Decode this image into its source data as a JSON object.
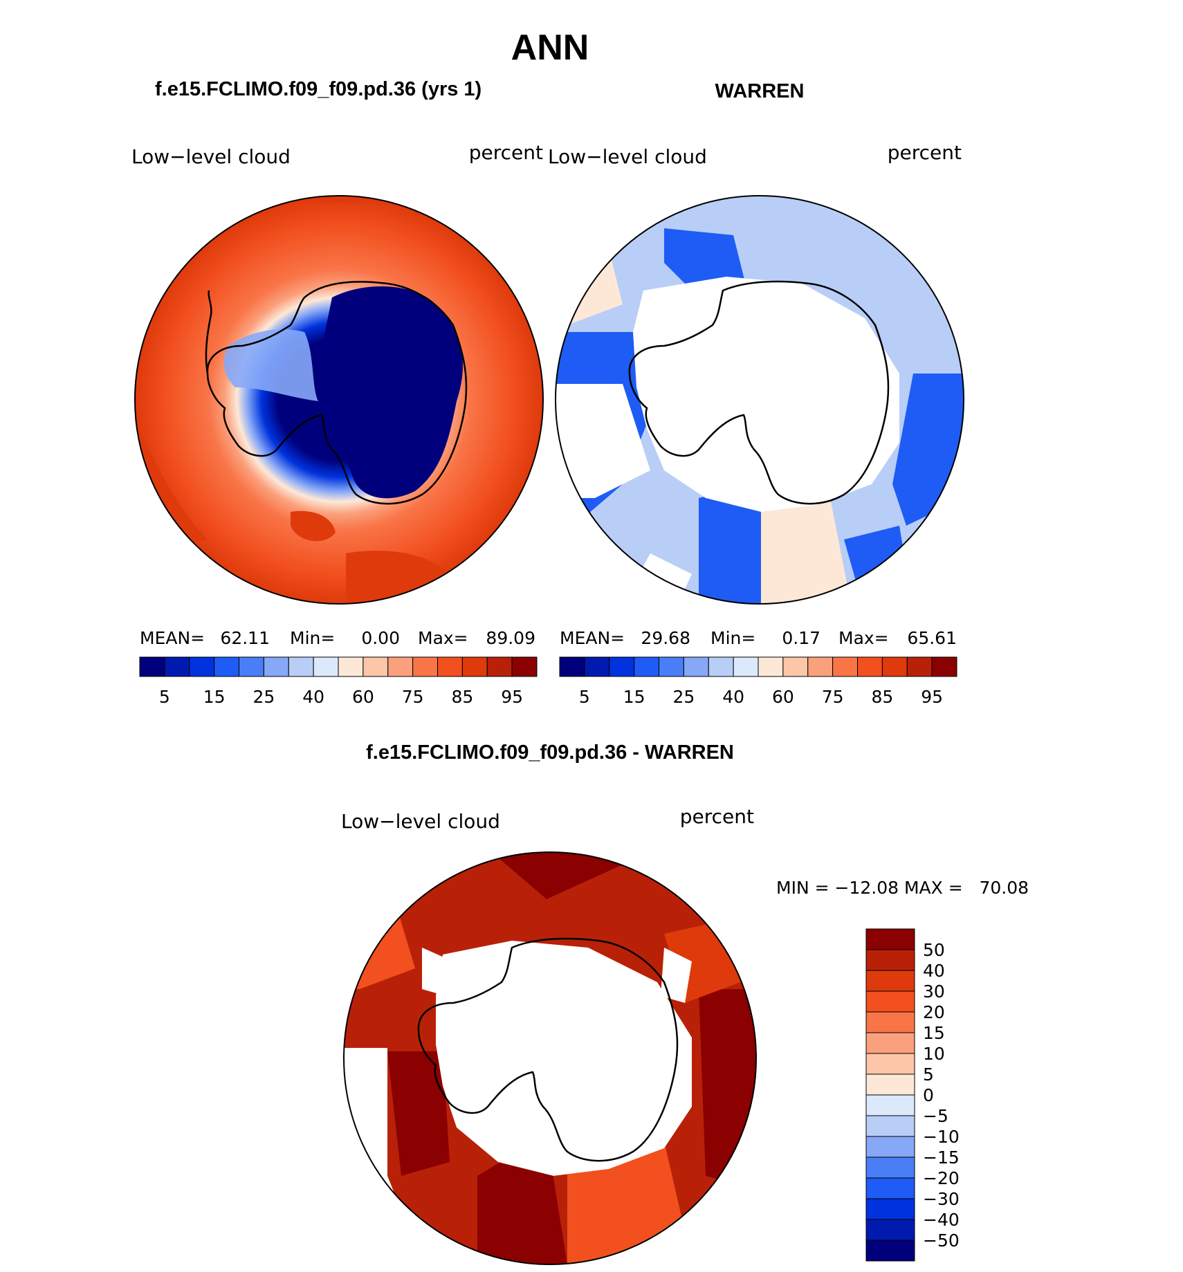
{
  "figure": {
    "title": "ANN",
    "left_title": "f.e15.FCLIMO.f09_f09.pd.36 (yrs 1)",
    "right_title": "WARREN",
    "diff_title": "f.e15.FCLIMO.f09_f09.pd.36 - WARREN"
  },
  "panels": {
    "left": {
      "variable": "Low−level cloud",
      "units": "percent",
      "stats": {
        "mean_label": "MEAN=",
        "mean": "62.11",
        "min_label": "Min=",
        "min": "0.00",
        "max_label": "Max=",
        "max": "89.09"
      }
    },
    "right": {
      "variable": "Low−level cloud",
      "units": "percent",
      "stats": {
        "mean_label": "MEAN=",
        "mean": "29.68",
        "min_label": "Min=",
        "min": "0.17",
        "max_label": "Max=",
        "max": "65.61"
      }
    },
    "diff": {
      "variable": "Low−level cloud",
      "units": "percent",
      "minmax": "MIN = −12.08 MAX =   70.08"
    }
  },
  "chart_data": [
    {
      "type": "heatmap",
      "projection": "south polar stereographic",
      "title": "f.e15.FCLIMO.f09_f09.pd.36 (yrs 1)",
      "variable": "Low-level cloud",
      "units": "percent",
      "mean": 62.11,
      "min": 0.0,
      "max": 89.09,
      "colorbar": {
        "orientation": "horizontal",
        "levels": [
          5,
          10,
          15,
          20,
          25,
          30,
          40,
          50,
          60,
          65,
          70,
          75,
          80,
          85,
          90,
          95
        ],
        "tick_labels": [
          "5",
          "15",
          "25",
          "40",
          "60",
          "75",
          "85",
          "95"
        ],
        "colors": [
          "#00007d",
          "#001ab0",
          "#0033dd",
          "#1e5cf5",
          "#4a7ef7",
          "#86a8f7",
          "#b8cef7",
          "#dbe9fb",
          "#fde8d8",
          "#fdc6a8",
          "#fba07c",
          "#f97548",
          "#f2501f",
          "#de3a0c",
          "#b82108",
          "#8b0000"
        ]
      }
    },
    {
      "type": "heatmap",
      "projection": "south polar stereographic",
      "title": "WARREN",
      "variable": "Low-level cloud",
      "units": "percent",
      "mean": 29.68,
      "min": 0.17,
      "max": 65.61,
      "colorbar": {
        "orientation": "horizontal",
        "levels": [
          5,
          10,
          15,
          20,
          25,
          30,
          40,
          50,
          60,
          65,
          70,
          75,
          80,
          85,
          90,
          95
        ],
        "tick_labels": [
          "5",
          "15",
          "25",
          "40",
          "60",
          "75",
          "85",
          "95"
        ],
        "colors": [
          "#00007d",
          "#001ab0",
          "#0033dd",
          "#1e5cf5",
          "#4a7ef7",
          "#86a8f7",
          "#b8cef7",
          "#dbe9fb",
          "#fde8d8",
          "#fdc6a8",
          "#fba07c",
          "#f97548",
          "#f2501f",
          "#de3a0c",
          "#b82108",
          "#8b0000"
        ]
      }
    },
    {
      "type": "heatmap",
      "projection": "south polar stereographic",
      "title": "f.e15.FCLIMO.f09_f09.pd.36 - WARREN",
      "variable": "Low-level cloud",
      "units": "percent",
      "min": -12.08,
      "max": 70.08,
      "colorbar": {
        "orientation": "vertical",
        "tick_labels": [
          "50",
          "40",
          "30",
          "20",
          "15",
          "10",
          "5",
          "0",
          "−5",
          "−10",
          "−15",
          "−20",
          "−30",
          "−40",
          "−50"
        ],
        "colors": [
          "#8b0000",
          "#b82108",
          "#de3a0c",
          "#f2501f",
          "#f97548",
          "#fba07c",
          "#fdc6a8",
          "#fde8d8",
          "#dbe9fb",
          "#b8cef7",
          "#86a8f7",
          "#4a7ef7",
          "#1e5cf5",
          "#0033dd",
          "#001ab0",
          "#00007d"
        ]
      }
    }
  ]
}
